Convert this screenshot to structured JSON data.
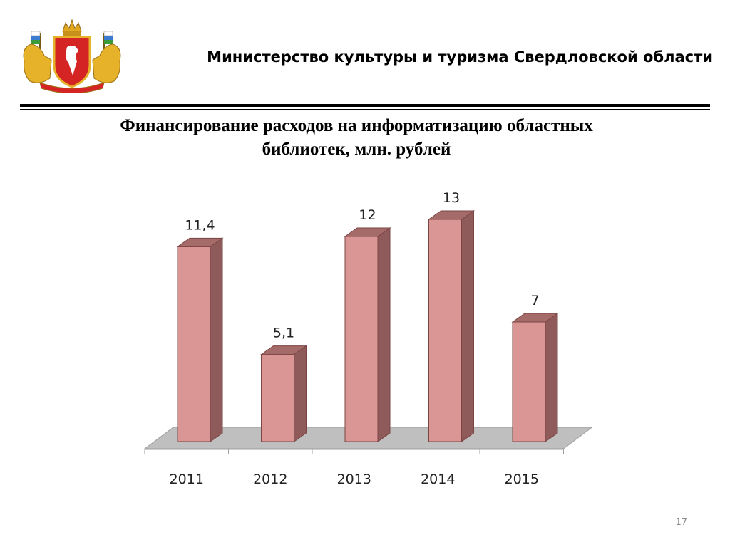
{
  "header": {
    "title": "Министерство культуры  и туризма Свердловской области"
  },
  "slide": {
    "page_number": "17"
  },
  "chart_data": {
    "type": "bar",
    "title_lines": [
      "Финансирование  расходов на информатизацию областных",
      "библиотек, млн. рублей"
    ],
    "categories": [
      "2011",
      "2012",
      "2013",
      "2014",
      "2015"
    ],
    "values": [
      11.4,
      5.1,
      12,
      13,
      7
    ],
    "data_labels": [
      "11,4",
      "5,1",
      "12",
      "13",
      "7"
    ],
    "xlabel": "",
    "ylabel": "",
    "ylim": [
      0,
      13
    ],
    "grid": false,
    "legend": "none",
    "style": "3d-column",
    "colors": {
      "bar_front": "#d99694",
      "bar_side": "#8f5b5a",
      "bar_top": "#a56b69",
      "bar_edge": "#7b4544",
      "floor": "#bfbfbf"
    }
  }
}
